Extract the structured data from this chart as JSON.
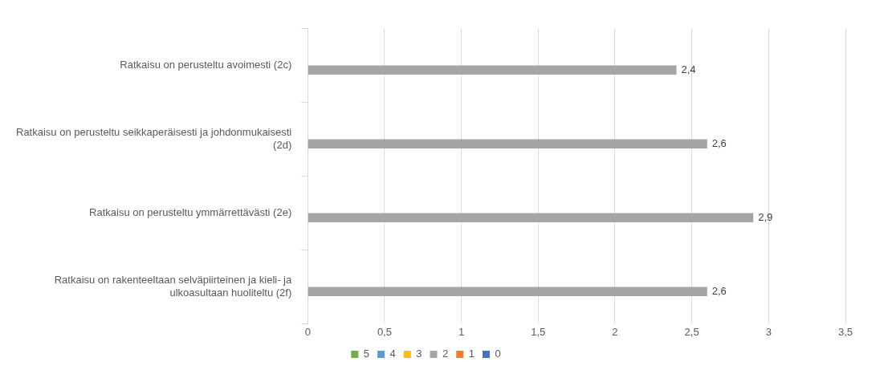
{
  "chart_data": {
    "type": "bar",
    "orientation": "horizontal",
    "categories": [
      "Ratkaisu on perusteltu avoimesti (2c)",
      "Ratkaisu on perusteltu seikkaperäisesti ja johdonmukaisesti (2d)",
      "Ratkaisu on perusteltu ymmärrettävästi (2e)",
      "Ratkaisu on rakenteeltaan selväpiirteinen ja kieli- ja ulkoasultaan huoliteltu (2f)"
    ],
    "series": [
      {
        "name": "5",
        "color": "#70ad47",
        "values": [
          null,
          null,
          null,
          null
        ]
      },
      {
        "name": "4",
        "color": "#5b9bd5",
        "values": [
          null,
          null,
          null,
          null
        ]
      },
      {
        "name": "3",
        "color": "#ffc000",
        "values": [
          null,
          null,
          null,
          null
        ]
      },
      {
        "name": "2",
        "color": "#a5a5a5",
        "values": [
          2.4,
          2.6,
          2.9,
          2.6
        ],
        "value_labels": [
          "2,4",
          "2,6",
          "2,9",
          "2,6"
        ]
      },
      {
        "name": "1",
        "color": "#ed7d31",
        "values": [
          null,
          null,
          null,
          null
        ]
      },
      {
        "name": "0",
        "color": "#4472c4",
        "values": [
          null,
          null,
          null,
          null
        ]
      }
    ],
    "xlim": [
      0,
      3.5
    ],
    "xticks": [
      0,
      {
        "value": 0.5,
        "label": "0,5"
      },
      1,
      {
        "value": 1.5,
        "label": "1,5"
      },
      2,
      {
        "value": 2.5,
        "label": "2,5"
      },
      3,
      {
        "value": 3.5,
        "label": "3,5"
      }
    ],
    "grid": "x",
    "legend": "bottom"
  }
}
